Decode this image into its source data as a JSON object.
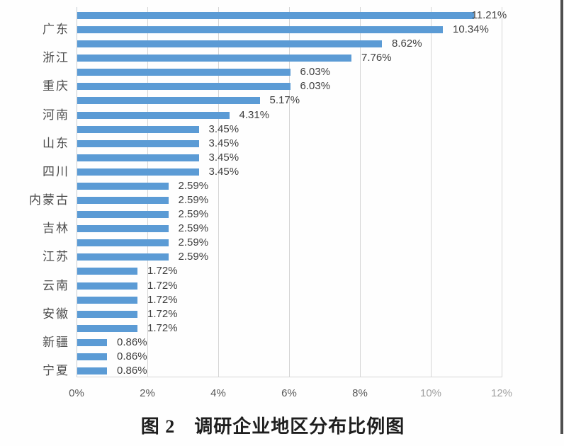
{
  "caption": {
    "text": "图 2　调研企业地区分布比例图"
  },
  "chart_data": {
    "type": "bar",
    "orientation": "horizontal",
    "title": "图 2　调研企业地区分布比例图",
    "x_axis": {
      "ticks": [
        "0%",
        "2%",
        "4%",
        "6%",
        "8%",
        "10%",
        "12%"
      ],
      "min": 0,
      "max": 12,
      "unit": "%",
      "gridlines": true
    },
    "y_axis": {
      "visible_category_labels": [
        "广东",
        "浙江",
        "重庆",
        "河南",
        "山东",
        "四川",
        "内蒙古",
        "吉林",
        "江苏",
        "云南",
        "安徽",
        "新疆",
        "宁夏"
      ]
    },
    "legend": {
      "position": "none"
    },
    "bars": [
      {
        "value": 11.21,
        "label": "11.21%",
        "category": ""
      },
      {
        "value": 10.34,
        "label": "10.34%",
        "category": "广东"
      },
      {
        "value": 8.62,
        "label": "8.62%",
        "category": ""
      },
      {
        "value": 7.76,
        "label": "7.76%",
        "category": "浙江"
      },
      {
        "value": 6.03,
        "label": "6.03%",
        "category": ""
      },
      {
        "value": 6.03,
        "label": "6.03%",
        "category": "重庆"
      },
      {
        "value": 5.17,
        "label": "5.17%",
        "category": ""
      },
      {
        "value": 4.31,
        "label": "4.31%",
        "category": "河南"
      },
      {
        "value": 3.45,
        "label": "3.45%",
        "category": ""
      },
      {
        "value": 3.45,
        "label": "3.45%",
        "category": "山东"
      },
      {
        "value": 3.45,
        "label": "3.45%",
        "category": ""
      },
      {
        "value": 3.45,
        "label": "3.45%",
        "category": "四川"
      },
      {
        "value": 2.59,
        "label": "2.59%",
        "category": ""
      },
      {
        "value": 2.59,
        "label": "2.59%",
        "category": "内蒙古"
      },
      {
        "value": 2.59,
        "label": "2.59%",
        "category": ""
      },
      {
        "value": 2.59,
        "label": "2.59%",
        "category": "吉林"
      },
      {
        "value": 2.59,
        "label": "2.59%",
        "category": ""
      },
      {
        "value": 2.59,
        "label": "2.59%",
        "category": "江苏"
      },
      {
        "value": 1.72,
        "label": "1.72%",
        "category": ""
      },
      {
        "value": 1.72,
        "label": "1.72%",
        "category": "云南"
      },
      {
        "value": 1.72,
        "label": "1.72%",
        "category": ""
      },
      {
        "value": 1.72,
        "label": "1.72%",
        "category": "安徽"
      },
      {
        "value": 1.72,
        "label": "1.72%",
        "category": ""
      },
      {
        "value": 0.86,
        "label": "0.86%",
        "category": "新疆"
      },
      {
        "value": 0.86,
        "label": "0.86%",
        "category": ""
      },
      {
        "value": 0.86,
        "label": "0.86%",
        "category": "宁夏"
      }
    ],
    "colors": {
      "bar": "#5b9bd5",
      "gridline": "#d5d5d5",
      "data_label": "#3f3f3f",
      "tick_label": "#595959",
      "category_label": "#4d4d4d",
      "caption_text": "#1e1e1e"
    }
  }
}
